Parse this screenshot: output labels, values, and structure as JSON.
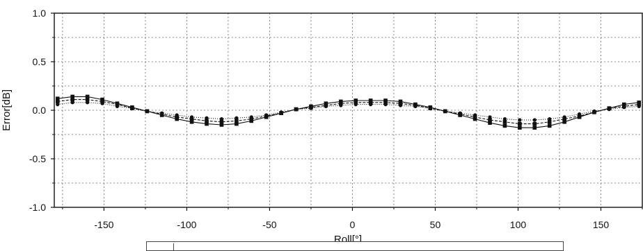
{
  "chart_data": {
    "type": "line",
    "title": "",
    "xlabel": "Roll[°]",
    "ylabel": "Error[dB]",
    "xlim": [
      -180,
      175
    ],
    "ylim": [
      -1.0,
      1.0
    ],
    "x_ticks": [
      -150,
      -100,
      -50,
      0,
      50,
      100,
      150
    ],
    "x_tick_labels": [
      "-150",
      "-100",
      "-50",
      "0",
      "50",
      "100",
      "150"
    ],
    "y_ticks": [
      1.0,
      0.5,
      0.0,
      -0.5,
      -1.0
    ],
    "y_tick_labels": [
      "1.0",
      "0.5",
      "0.0",
      "-0.5",
      "-1.0"
    ],
    "grid": true,
    "legend": "bottom",
    "series": [
      {
        "marker": "square",
        "x": [
          -178,
          -169,
          -160,
          -151,
          -142,
          -133,
          -124,
          -115,
          -106,
          -97,
          -88,
          -79,
          -70,
          -61,
          -52,
          -43,
          -34,
          -25,
          -16,
          -7,
          2,
          11,
          20,
          29,
          38,
          47,
          56,
          65,
          74,
          83,
          92,
          101,
          110,
          119,
          128,
          137,
          146,
          155,
          164,
          173
        ],
        "y": [
          0.12,
          0.14,
          0.14,
          0.11,
          0.07,
          0.03,
          -0.01,
          -0.05,
          -0.09,
          -0.12,
          -0.14,
          -0.15,
          -0.14,
          -0.11,
          -0.07,
          -0.03,
          0.01,
          0.04,
          0.07,
          0.09,
          0.1,
          0.1,
          0.1,
          0.09,
          0.06,
          0.03,
          -0.01,
          -0.05,
          -0.09,
          -0.13,
          -0.16,
          -0.18,
          -0.18,
          -0.16,
          -0.12,
          -0.07,
          -0.02,
          0.02,
          0.06,
          0.08
        ]
      },
      {
        "marker": "square",
        "x": [
          -178,
          -169,
          -160,
          -151,
          -142,
          -133,
          -124,
          -115,
          -106,
          -97,
          -88,
          -79,
          -70,
          -61,
          -52,
          -43,
          -34,
          -25,
          -16,
          -7,
          2,
          11,
          20,
          29,
          38,
          47,
          56,
          65,
          74,
          83,
          92,
          101,
          110,
          119,
          128,
          137,
          146,
          155,
          164,
          173
        ],
        "y": [
          0.09,
          0.11,
          0.11,
          0.09,
          0.06,
          0.02,
          -0.01,
          -0.04,
          -0.07,
          -0.09,
          -0.11,
          -0.12,
          -0.11,
          -0.09,
          -0.06,
          -0.03,
          0.01,
          0.03,
          0.05,
          0.07,
          0.08,
          0.08,
          0.08,
          0.07,
          0.05,
          0.02,
          -0.01,
          -0.04,
          -0.07,
          -0.1,
          -0.12,
          -0.14,
          -0.14,
          -0.12,
          -0.09,
          -0.06,
          -0.02,
          0.02,
          0.04,
          0.06
        ]
      },
      {
        "marker": "circle",
        "x": [
          -178,
          -169,
          -160,
          -151,
          -142,
          -133,
          -124,
          -115,
          -106,
          -97,
          -88,
          -79,
          -70,
          -61,
          -52,
          -43,
          -34,
          -25,
          -16,
          -7,
          2,
          11,
          20,
          29,
          38,
          47,
          56,
          65,
          74,
          83,
          92,
          101,
          110,
          119,
          128,
          137,
          146,
          155,
          164,
          173
        ],
        "y": [
          0.06,
          0.08,
          0.08,
          0.07,
          0.04,
          0.02,
          -0.01,
          -0.03,
          -0.05,
          -0.07,
          -0.08,
          -0.09,
          -0.08,
          -0.07,
          -0.05,
          -0.02,
          0.01,
          0.02,
          0.04,
          0.05,
          0.06,
          0.06,
          0.06,
          0.05,
          0.04,
          0.02,
          -0.01,
          -0.03,
          -0.05,
          -0.07,
          -0.09,
          -0.1,
          -0.1,
          -0.09,
          -0.07,
          -0.04,
          -0.01,
          0.01,
          0.03,
          0.04
        ]
      }
    ],
    "colors": {
      "line": "#111111",
      "grid": "#666666",
      "background": "#ffffff"
    }
  }
}
